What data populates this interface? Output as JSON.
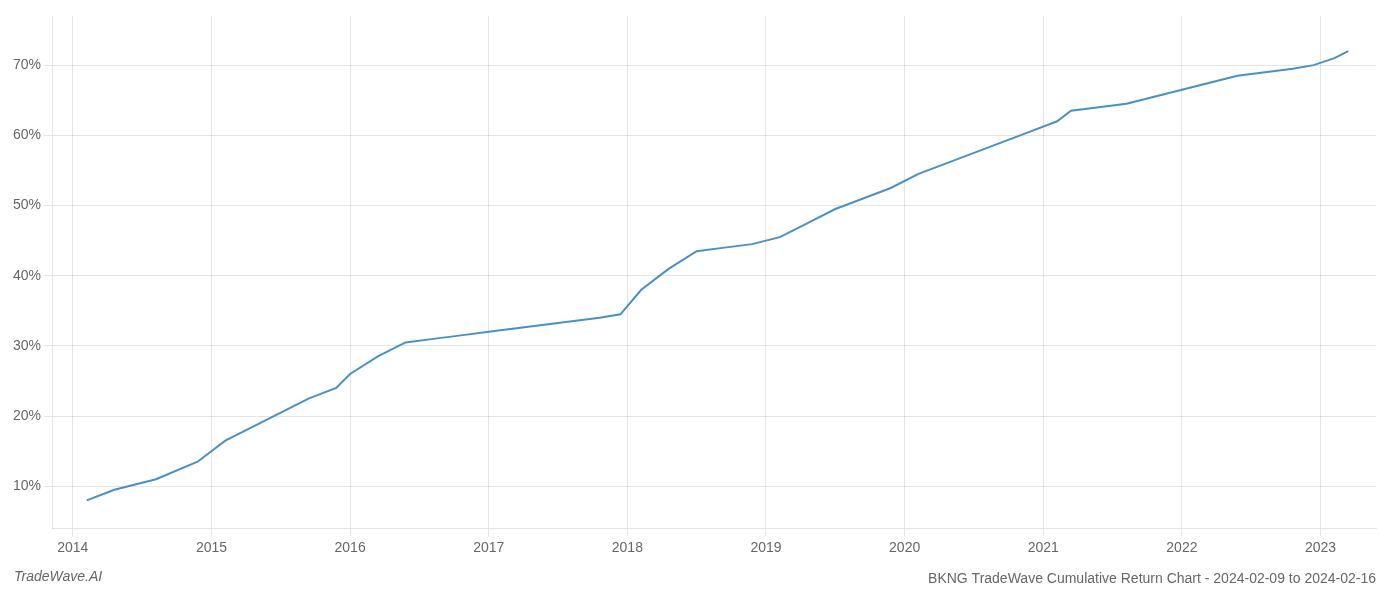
{
  "chart_data": {
    "type": "line",
    "title": "BKNG TradeWave Cumulative Return Chart - 2024-02-09 to 2024-02-16",
    "annotations": [
      "TradeWave.AI"
    ],
    "x": [
      2014.1,
      2014.3,
      2014.6,
      2014.9,
      2015.1,
      2015.3,
      2015.5,
      2015.7,
      2015.9,
      2016.0,
      2016.2,
      2016.4,
      2016.6,
      2016.8,
      2017.0,
      2017.2,
      2017.4,
      2017.6,
      2017.8,
      2017.95,
      2018.1,
      2018.3,
      2018.5,
      2018.7,
      2018.9,
      2019.1,
      2019.3,
      2019.5,
      2019.7,
      2019.9,
      2020.1,
      2020.3,
      2020.5,
      2020.7,
      2020.9,
      2021.1,
      2021.2,
      2021.4,
      2021.6,
      2021.8,
      2022.0,
      2022.2,
      2022.4,
      2022.6,
      2022.8,
      2022.95,
      2023.1,
      2023.2
    ],
    "values": [
      8.0,
      9.5,
      11.0,
      13.5,
      16.5,
      18.5,
      20.5,
      22.5,
      24.0,
      26.0,
      28.5,
      30.5,
      31.0,
      31.5,
      32.0,
      32.5,
      33.0,
      33.5,
      34.0,
      34.5,
      38.0,
      41.0,
      43.5,
      44.0,
      44.5,
      45.5,
      47.5,
      49.5,
      51.0,
      52.5,
      54.5,
      56.0,
      57.5,
      59.0,
      60.5,
      62.0,
      63.5,
      64.0,
      64.5,
      65.5,
      66.5,
      67.5,
      68.5,
      69.0,
      69.5,
      70.0,
      71.0,
      72.0
    ],
    "color": "#4a90c4",
    "xlim": [
      2013.85,
      2023.4
    ],
    "ylim": [
      4.0,
      77.0
    ],
    "xticks": [
      2014,
      2015,
      2016,
      2017,
      2018,
      2019,
      2020,
      2021,
      2022,
      2023
    ],
    "yticks": [
      {
        "value": 10,
        "label": "10%"
      },
      {
        "value": 20,
        "label": "20%"
      },
      {
        "value": 30,
        "label": "30%"
      },
      {
        "value": 40,
        "label": "40%"
      },
      {
        "value": 50,
        "label": "50%"
      },
      {
        "value": 60,
        "label": "60%"
      },
      {
        "value": 70,
        "label": "70%"
      }
    ],
    "grid": true
  }
}
